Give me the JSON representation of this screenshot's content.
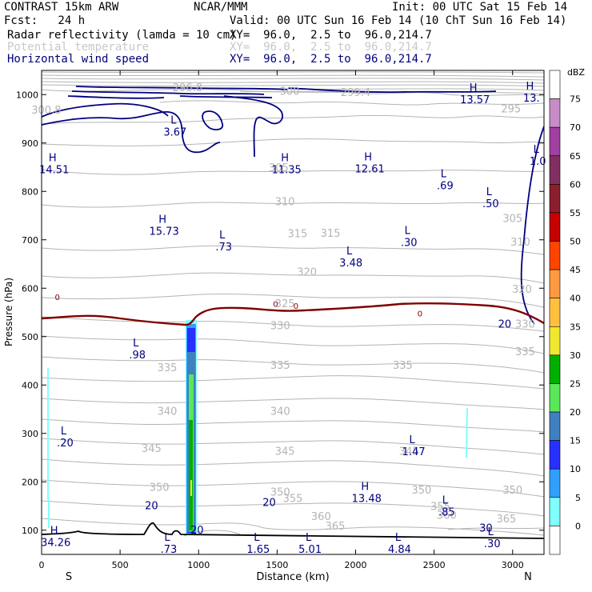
{
  "header": {
    "model": "CONTRAST 15km ARW",
    "org": "NCAR/MMM",
    "init": "Init: 00 UTC Sat 15 Feb 14",
    "fcst": "Fcst:   24 h",
    "valid": "Valid: 00 UTC Sun 16 Feb 14 (10 ChT Sun 16 Feb 14)",
    "field1": "Radar reflectivity (lamda = 10 cm)",
    "field1_xy": "XY=  96.0,  2.5 to  96.0,214.7",
    "field2": "Potential temperature",
    "field2_xy": "XY=  96.0,  2.5 to  96.0,214.7",
    "field3": "Horizontal wind speed",
    "field3_xy": "XY=  96.0,  2.5 to  96.0,214.7"
  },
  "colors": {
    "theta": "#b4b4b4",
    "wind": "#000080",
    "zero_isotherm": "#800000",
    "terrain": "#000000"
  },
  "chart_data": {
    "type": "cross-section",
    "xlabel": "Distance (km)",
    "ylabel": "Pressure (hPa)",
    "xlim": [
      0,
      3200
    ],
    "ylim": [
      1050,
      50
    ],
    "x_ticks": [
      "0",
      "500",
      "1000",
      "1500",
      "2000",
      "2500",
      "3000"
    ],
    "x_tick_values": [
      0,
      500,
      1000,
      1500,
      2000,
      2500,
      3000
    ],
    "y_ticks": [
      "100",
      "200",
      "300",
      "400",
      "500",
      "600",
      "700",
      "800",
      "900",
      "1000"
    ],
    "y_tick_values": [
      100,
      200,
      300,
      400,
      500,
      600,
      700,
      800,
      900,
      1000
    ],
    "end_labels": {
      "left": "S",
      "right": "N"
    },
    "colorbar": {
      "unit": "dBZ",
      "levels": [
        "75",
        "70",
        "65",
        "60",
        "55",
        "50",
        "45",
        "40",
        "35",
        "30",
        "25",
        "20",
        "15",
        "10",
        "5",
        "0"
      ],
      "colors": [
        "#ffffff",
        "#c88cc8",
        "#a040a0",
        "#803060",
        "#8c1e2e",
        "#c80000",
        "#ff4400",
        "#ff9a40",
        "#ffc040",
        "#f0e830",
        "#00b000",
        "#58e858",
        "#4080c0",
        "#2830ff",
        "#30a0ff",
        "#80ffff",
        "#ffffff"
      ]
    },
    "theta_labels": [
      {
        "text": "365",
        "x": 1870,
        "p": 108
      },
      {
        "text": "360",
        "x": 1780,
        "p": 128
      },
      {
        "text": "360",
        "x": 2580,
        "p": 130
      },
      {
        "text": "365",
        "x": 2960,
        "p": 123
      },
      {
        "text": "355",
        "x": 1600,
        "p": 165
      },
      {
        "text": "355",
        "x": 2540,
        "p": 148
      },
      {
        "text": "350",
        "x": 750,
        "p": 188
      },
      {
        "text": "350",
        "x": 1520,
        "p": 178
      },
      {
        "text": "350",
        "x": 2420,
        "p": 182
      },
      {
        "text": "350",
        "x": 3000,
        "p": 182
      },
      {
        "text": "345",
        "x": 700,
        "p": 268
      },
      {
        "text": "345",
        "x": 1550,
        "p": 262
      },
      {
        "text": "345",
        "x": 2340,
        "p": 262
      },
      {
        "text": "340",
        "x": 800,
        "p": 345
      },
      {
        "text": "340",
        "x": 1520,
        "p": 345
      },
      {
        "text": "335",
        "x": 800,
        "p": 435
      },
      {
        "text": "335",
        "x": 1520,
        "p": 440
      },
      {
        "text": "335",
        "x": 2300,
        "p": 440
      },
      {
        "text": "335",
        "x": 3080,
        "p": 468
      },
      {
        "text": "330",
        "x": 1520,
        "p": 522
      },
      {
        "text": "330",
        "x": 3080,
        "p": 525
      },
      {
        "text": "325",
        "x": 1550,
        "p": 567
      },
      {
        "text": "320",
        "x": 1690,
        "p": 633
      },
      {
        "text": "320",
        "x": 3060,
        "p": 597
      },
      {
        "text": "315",
        "x": 1630,
        "p": 712
      },
      {
        "text": "315",
        "x": 1840,
        "p": 713
      },
      {
        "text": "310",
        "x": 1550,
        "p": 778
      },
      {
        "text": "310",
        "x": 3050,
        "p": 695
      },
      {
        "text": "305",
        "x": 1510,
        "p": 848
      },
      {
        "text": "305",
        "x": 3000,
        "p": 743
      },
      {
        "text": "300",
        "x": 1580,
        "p": 1006
      },
      {
        "text": "299.4",
        "x": 2000,
        "p": 1004
      },
      {
        "text": "296.8",
        "x": 930,
        "p": 1014
      },
      {
        "text": "295",
        "x": 2990,
        "p": 970
      },
      {
        "text": "300.8",
        "x": 30,
        "p": 967
      }
    ],
    "wind_labels": [
      {
        "text": "20",
        "x": 990,
        "p": 100
      },
      {
        "text": "20",
        "x": 700,
        "p": 150
      },
      {
        "text": "20",
        "x": 1450,
        "p": 157
      },
      {
        "text": "20",
        "x": 2950,
        "p": 525
      },
      {
        "text": "30",
        "x": 2830,
        "p": 104
      }
    ],
    "zero_labels": [
      {
        "text": "0",
        "x": 100,
        "p": 582
      },
      {
        "text": "0",
        "x": 1490,
        "p": 568
      },
      {
        "text": "0",
        "x": 1620,
        "p": 564
      },
      {
        "text": "0",
        "x": 2410,
        "p": 548
      }
    ],
    "extrema": [
      {
        "kind": "H",
        "value": "34.26",
        "x": 80,
        "p": 92
      },
      {
        "kind": "L",
        "value": ".73",
        "x": 800,
        "p": 78
      },
      {
        "kind": "L",
        "value": "1.65",
        "x": 1370,
        "p": 78
      },
      {
        "kind": "L",
        "value": "5.01",
        "x": 1700,
        "p": 78
      },
      {
        "kind": "L",
        "value": "4.84",
        "x": 2270,
        "p": 78
      },
      {
        "kind": "L",
        "value": ".30",
        "x": 2860,
        "p": 90
      },
      {
        "kind": "L",
        "value": ".85",
        "x": 2570,
        "p": 155
      },
      {
        "kind": "H",
        "value": "13.48",
        "x": 2060,
        "p": 183
      },
      {
        "kind": "L",
        "value": ".20",
        "x": 140,
        "p": 298
      },
      {
        "kind": "L",
        "value": "1.47",
        "x": 2360,
        "p": 280
      },
      {
        "kind": "L",
        "value": ".98",
        "x": 600,
        "p": 480
      },
      {
        "kind": "L",
        "value": "3.48",
        "x": 1960,
        "p": 670
      },
      {
        "kind": "L",
        "value": ".73",
        "x": 1150,
        "p": 703
      },
      {
        "kind": "L",
        "value": ".30",
        "x": 2330,
        "p": 712
      },
      {
        "kind": "H",
        "value": "15.73",
        "x": 770,
        "p": 735
      },
      {
        "kind": "L",
        "value": ".50",
        "x": 2850,
        "p": 792
      },
      {
        "kind": "L",
        "value": ".69",
        "x": 2560,
        "p": 829
      },
      {
        "kind": "H",
        "value": "14.51",
        "x": 70,
        "p": 862
      },
      {
        "kind": "H",
        "value": "11.35",
        "x": 1550,
        "p": 862
      },
      {
        "kind": "H",
        "value": "12.61",
        "x": 2080,
        "p": 864
      },
      {
        "kind": "L",
        "value": "1.0",
        "x": 3150,
        "p": 880
      },
      {
        "kind": "L",
        "value": "3.67",
        "x": 840,
        "p": 940
      },
      {
        "kind": "H",
        "value": "13.57",
        "x": 2750,
        "p": 1007
      },
      {
        "kind": "H",
        "value": "13.",
        "x": 3110,
        "p": 1010
      }
    ]
  }
}
